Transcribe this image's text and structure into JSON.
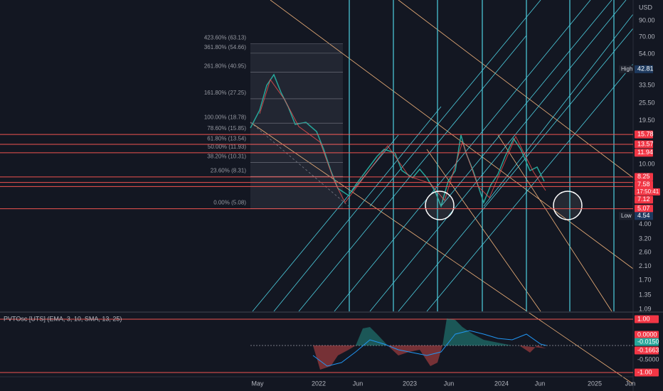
{
  "price_axis": {
    "currency": "USD",
    "ticks": [
      {
        "value": 90,
        "label": "90.00"
      },
      {
        "value": 70,
        "label": "70.00"
      },
      {
        "value": 54,
        "label": "54.00"
      },
      {
        "value": 33.5,
        "label": "33.50"
      },
      {
        "value": 25.5,
        "label": "25.50"
      },
      {
        "value": 19.5,
        "label": "19.50"
      },
      {
        "value": 10,
        "label": "10.00"
      },
      {
        "value": 4,
        "label": "4.00"
      },
      {
        "value": 3.2,
        "label": "3.20"
      },
      {
        "value": 2.6,
        "label": "2.60"
      },
      {
        "value": 2.1,
        "label": "2.10"
      },
      {
        "value": 1.7,
        "label": "1.70"
      },
      {
        "value": 1.35,
        "label": "1.35"
      },
      {
        "value": 1.09,
        "label": "1.09"
      }
    ]
  },
  "high": {
    "tag": "High",
    "value": 42.81,
    "label": "42.81"
  },
  "low": {
    "tag": "Low",
    "value": 4.54,
    "label": "4.54"
  },
  "badges": [
    {
      "value": 15.78,
      "label": "15.78"
    },
    {
      "value": 13.57,
      "label": "13.57"
    },
    {
      "value": 11.94,
      "label": "11.94"
    },
    {
      "value": 8.25,
      "label": "8.25"
    },
    {
      "value": 7.58,
      "label": "7.58",
      "countdown": "17:50:41"
    },
    {
      "value": 7.12,
      "label": "7.12"
    },
    {
      "value": 5.07,
      "label": "5.07"
    }
  ],
  "fib_levels": [
    {
      "value": 63.13,
      "label": "423.60% (63.13)"
    },
    {
      "value": 54.66,
      "label": "361.80% (54.66)"
    },
    {
      "value": 40.95,
      "label": "261.80% (40.95)"
    },
    {
      "value": 27.25,
      "label": "161.80% (27.25)"
    },
    {
      "value": 18.78,
      "label": "100.00% (18.78)"
    },
    {
      "value": 15.85,
      "label": "78.60% (15.85)"
    },
    {
      "value": 13.54,
      "label": "61.80% (13.54)"
    },
    {
      "value": 11.93,
      "label": "50.00% (11.93)"
    },
    {
      "value": 10.31,
      "label": "38.20% (10.31)"
    },
    {
      "value": 8.31,
      "label": "23.60% (8.31)"
    },
    {
      "value": 5.08,
      "label": "0.00% (5.08)"
    }
  ],
  "time_axis": [
    "May",
    "2022",
    "Jun",
    "2023",
    "Jun",
    "2024",
    "Jun",
    "2025",
    "Jun"
  ],
  "indicator": {
    "title": "PVTOsc [UTS] (EMA, 3, 10, SMA, 13, 25)",
    "labels": [
      {
        "label": "1.00",
        "kind": "red"
      },
      {
        "label": "0.0000",
        "kind": "red"
      },
      {
        "label": "-0.0150",
        "kind": "teal"
      },
      {
        "label": "-0.1663",
        "kind": "red"
      },
      {
        "label": "-0.5000",
        "kind": "plain"
      },
      {
        "label": "-1.00",
        "kind": "red"
      }
    ]
  }
}
